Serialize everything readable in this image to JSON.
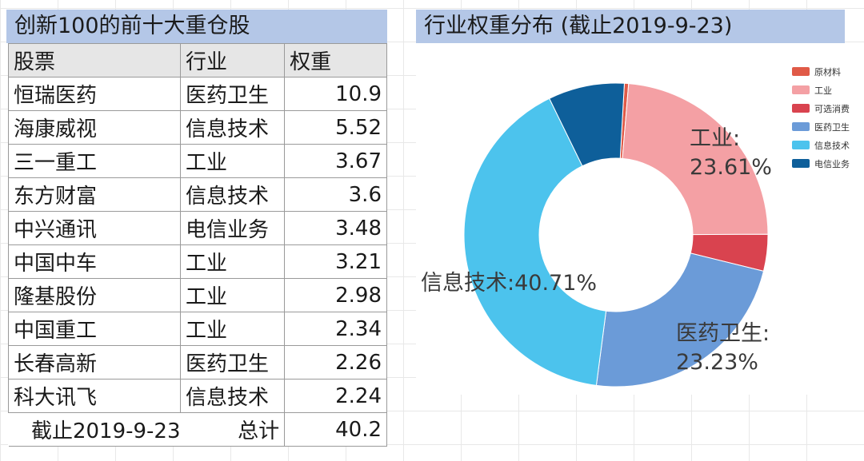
{
  "table": {
    "title": "创新100的前十大重仓股",
    "headers": [
      "股票",
      "行业",
      "权重"
    ],
    "rows": [
      {
        "stock": "恒瑞医药",
        "industry": "医药卫生",
        "weight": "10.9"
      },
      {
        "stock": "海康威视",
        "industry": "信息技术",
        "weight": "5.52"
      },
      {
        "stock": "三一重工",
        "industry": "工业",
        "weight": "3.67"
      },
      {
        "stock": "东方财富",
        "industry": "信息技术",
        "weight": "3.6"
      },
      {
        "stock": "中兴通讯",
        "industry": "电信业务",
        "weight": "3.48"
      },
      {
        "stock": "中国中车",
        "industry": "工业",
        "weight": "3.21"
      },
      {
        "stock": "隆基股份",
        "industry": "工业",
        "weight": "2.98"
      },
      {
        "stock": "中国重工",
        "industry": "工业",
        "weight": "2.34"
      },
      {
        "stock": "长春高新",
        "industry": "医药卫生",
        "weight": "2.26"
      },
      {
        "stock": "科大讯飞",
        "industry": "信息技术",
        "weight": "2.24"
      }
    ],
    "footer": {
      "date": "截止2019-9-23",
      "label": "总计",
      "total": "40.2"
    }
  },
  "chart_data": {
    "type": "pie",
    "donut": true,
    "title": "行业权重分布 (截止2019-9-23)",
    "legend_position": "top-right",
    "slices": [
      {
        "name": "原材料",
        "value": 0.45,
        "color": "#e05a47",
        "label": ""
      },
      {
        "name": "工业",
        "value": 23.61,
        "color": "#f4a0a4",
        "label": "工业:\n23.61%"
      },
      {
        "name": "可选消费",
        "value": 3.9,
        "color": "#d9434f",
        "label": ""
      },
      {
        "name": "医药卫生",
        "value": 23.23,
        "color": "#6b9bd8",
        "label": "医药卫生:\n23.23%"
      },
      {
        "name": "信息技术",
        "value": 40.71,
        "color": "#4cc3ed",
        "label": "信息技术:40.71%"
      },
      {
        "name": "电信业务",
        "value": 8.1,
        "color": "#0e5f9a",
        "label": ""
      }
    ]
  }
}
